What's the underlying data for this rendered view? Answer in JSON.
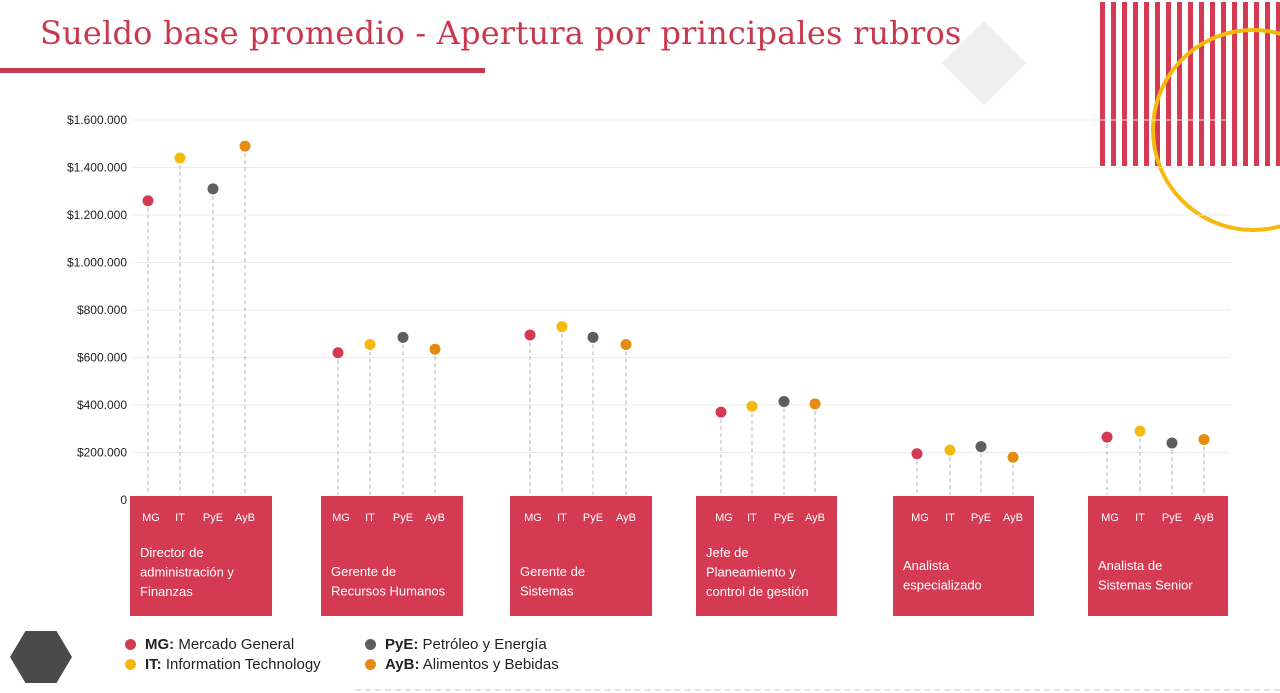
{
  "page": {
    "title": "Sueldo base promedio - Apertura por principales rubros"
  },
  "colors": {
    "MG": "#d53a53",
    "IT": "#f5b90f",
    "PyE": "#5e5e5e",
    "AyB": "#e48c11",
    "category_box": "#d53a53",
    "accent": "#c8384f"
  },
  "legend": [
    {
      "key": "MG",
      "abbr": "MG:",
      "label": "Mercado General"
    },
    {
      "key": "IT",
      "abbr": "IT:",
      "label": "Information Technology"
    },
    {
      "key": "PyE",
      "abbr": "PyE:",
      "label": "Petróleo y Energía"
    },
    {
      "key": "AyB",
      "abbr": "AyB:",
      "label": "Alimentos y Bebidas"
    }
  ],
  "chart_data": {
    "type": "scatter",
    "ylim": [
      0,
      1600000
    ],
    "y_ticks": [
      {
        "value": 0,
        "label": "0"
      },
      {
        "value": 200000,
        "label": "$200.000"
      },
      {
        "value": 400000,
        "label": "$400.000"
      },
      {
        "value": 600000,
        "label": "$600.000"
      },
      {
        "value": 800000,
        "label": "$800.000"
      },
      {
        "value": 1000000,
        "label": "$1.000.000"
      },
      {
        "value": 1200000,
        "label": "$1.200.000"
      },
      {
        "value": 1400000,
        "label": "$1.400.000"
      },
      {
        "value": 1600000,
        "label": "$1.600.000"
      }
    ],
    "grid": true,
    "legend_position": "bottom-left",
    "series_order": [
      "MG",
      "IT",
      "PyE",
      "AyB"
    ],
    "series_labels": [
      "MG",
      "IT",
      "PyE",
      "AyB"
    ],
    "categories": [
      {
        "lines": [
          "Director de",
          "administración y",
          "Finanzas"
        ],
        "values": {
          "MG": 1260000,
          "IT": 1440000,
          "PyE": 1310000,
          "AyB": 1490000
        }
      },
      {
        "lines": [
          "Gerente de",
          "Recursos Humanos"
        ],
        "values": {
          "MG": 620000,
          "IT": 655000,
          "PyE": 685000,
          "AyB": 635000
        }
      },
      {
        "lines": [
          "Gerente de",
          "Sistemas"
        ],
        "values": {
          "MG": 695000,
          "IT": 730000,
          "PyE": 685000,
          "AyB": 655000
        }
      },
      {
        "lines": [
          "Jefe de",
          "Planeamiento y",
          "control de gestión"
        ],
        "values": {
          "MG": 370000,
          "IT": 395000,
          "PyE": 415000,
          "AyB": 405000
        }
      },
      {
        "lines": [
          "Analista",
          "especializado"
        ],
        "values": {
          "MG": 195000,
          "IT": 210000,
          "PyE": 225000,
          "AyB": 180000
        }
      },
      {
        "lines": [
          "Analista de",
          "Sistemas Senior"
        ],
        "values": {
          "MG": 265000,
          "IT": 290000,
          "PyE": 240000,
          "AyB": 255000
        }
      }
    ]
  }
}
